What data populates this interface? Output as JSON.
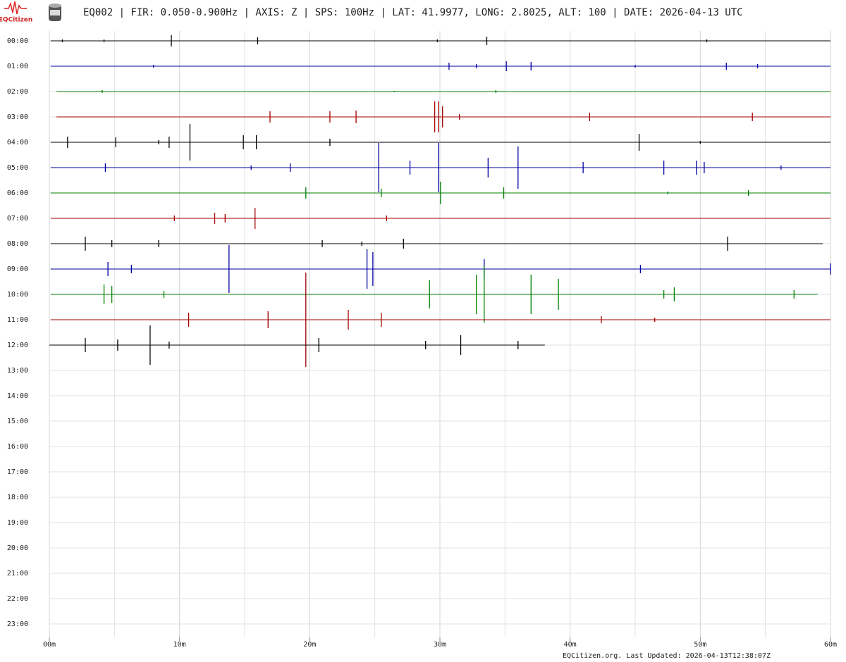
{
  "header": {
    "logo_text": "EQCitizen",
    "title": "EQ002 | FIR: 0.050-0.900Hz | AXIS: Z | SPS: 100Hz | LAT: 41.9977, LONG: 2.8025, ALT: 100 | DATE: 2026-04-13 UTC"
  },
  "footer": "EQCitizen.org. Last Updated: 2026-04-13T12:38:07Z",
  "chart_data": {
    "type": "helicorder",
    "categories": [
      "00:00",
      "01:00",
      "02:00",
      "03:00",
      "04:00",
      "05:00",
      "06:00",
      "07:00",
      "08:00",
      "09:00",
      "10:00",
      "11:00",
      "12:00",
      "13:00",
      "14:00",
      "15:00",
      "16:00",
      "17:00",
      "18:00",
      "19:00",
      "20:00",
      "21:00",
      "22:00",
      "23:00"
    ],
    "xlim": [
      0,
      60
    ],
    "xticks": [
      {
        "value": 0,
        "label": "00m"
      },
      {
        "value": 10,
        "label": "10m"
      },
      {
        "value": 20,
        "label": "20m"
      },
      {
        "value": 30,
        "label": "30m"
      },
      {
        "value": 40,
        "label": "40m"
      },
      {
        "value": 50,
        "label": "50m"
      },
      {
        "value": 60,
        "label": "60m"
      }
    ],
    "minor_xticks": [
      5,
      15,
      25,
      35,
      45,
      55
    ],
    "grid": true,
    "series": [
      {
        "color": "#000000",
        "x": [
          0.1,
          1.0,
          4.2,
          9.37,
          16.0,
          29.8,
          33.6,
          50.5,
          60
        ],
        "values": [
          0,
          2,
          2,
          8,
          5,
          2,
          6,
          2,
          0
        ]
      },
      {
        "color": "#0000a0",
        "x": [
          0.1,
          8.0,
          30.7,
          32.8,
          35.1,
          37.0,
          45.0,
          52.0,
          54.4,
          60
        ],
        "values": [
          0,
          2,
          5,
          3,
          7,
          6,
          2,
          5,
          3,
          0
        ]
      },
      {
        "color": "#008000",
        "x": [
          0.54,
          4.06,
          26.5,
          34.3,
          60
        ],
        "values": [
          0,
          2,
          1,
          2,
          0
        ]
      },
      {
        "color": "#a00000",
        "x": [
          0.54,
          16.95,
          21.55,
          23.56,
          29.6,
          29.9,
          30.2,
          31.5,
          41.5,
          54.0,
          60
        ],
        "values": [
          0,
          8,
          8,
          9,
          22,
          22,
          15,
          4,
          6,
          6,
          0
        ]
      },
      {
        "color": "#000000",
        "x": [
          0.1,
          1.4,
          5.1,
          8.4,
          9.2,
          10.8,
          14.9,
          15.9,
          21.55,
          45.3,
          50.0,
          60
        ],
        "values": [
          0,
          8,
          7,
          3,
          8,
          26,
          10,
          10,
          5,
          12,
          2,
          0
        ]
      },
      {
        "color": "#0000a0",
        "x": [
          0.1,
          4.3,
          15.5,
          18.5,
          25.3,
          27.7,
          29.9,
          33.7,
          36.0,
          41.0,
          47.2,
          49.7,
          50.3,
          56.2,
          60
        ],
        "values": [
          0,
          6,
          3,
          6,
          35,
          10,
          35,
          14,
          30,
          8,
          10,
          10,
          8,
          3,
          0
        ]
      },
      {
        "color": "#008000",
        "x": [
          0.1,
          19.7,
          25.5,
          30.05,
          34.9,
          47.5,
          53.7,
          60
        ],
        "values": [
          0,
          8,
          6,
          16,
          8,
          2,
          4,
          0
        ]
      },
      {
        "color": "#a00000",
        "x": [
          0.1,
          9.6,
          12.7,
          13.5,
          15.8,
          25.9,
          60
        ],
        "values": [
          0,
          4,
          8,
          6,
          15,
          4,
          0
        ]
      },
      {
        "color": "#000000",
        "x": [
          0.1,
          2.76,
          4.8,
          8.4,
          20.96,
          24.0,
          27.2,
          52.1,
          59.4
        ],
        "values": [
          0,
          10,
          5,
          5,
          5,
          3,
          7,
          10,
          0
        ]
      },
      {
        "color": "#0000a0",
        "x": [
          0.1,
          4.5,
          6.3,
          13.8,
          24.4,
          24.85,
          33.4,
          45.4,
          60
        ],
        "values": [
          0,
          10,
          6,
          34,
          28,
          24,
          14,
          6,
          8
        ]
      },
      {
        "color": "#008000",
        "x": [
          0.1,
          4.2,
          4.8,
          8.8,
          29.2,
          32.8,
          33.4,
          37.0,
          39.1,
          47.2,
          48.0,
          57.2,
          59.0
        ],
        "values": [
          0,
          14,
          12,
          5,
          20,
          28,
          40,
          28,
          22,
          6,
          10,
          6,
          0
        ]
      },
      {
        "color": "#a00000",
        "x": [
          0.1,
          10.7,
          16.8,
          19.7,
          22.96,
          25.5,
          42.4,
          46.5,
          60
        ],
        "values": [
          0,
          10,
          12,
          67,
          14,
          10,
          5,
          3,
          0
        ]
      },
      {
        "color": "#000000",
        "x": [
          0,
          2.76,
          5.25,
          7.74,
          9.2,
          20.7,
          28.9,
          31.6,
          36.0,
          38.06
        ],
        "values": [
          0,
          10,
          8,
          28,
          5,
          10,
          6,
          14,
          6,
          0
        ]
      }
    ]
  }
}
